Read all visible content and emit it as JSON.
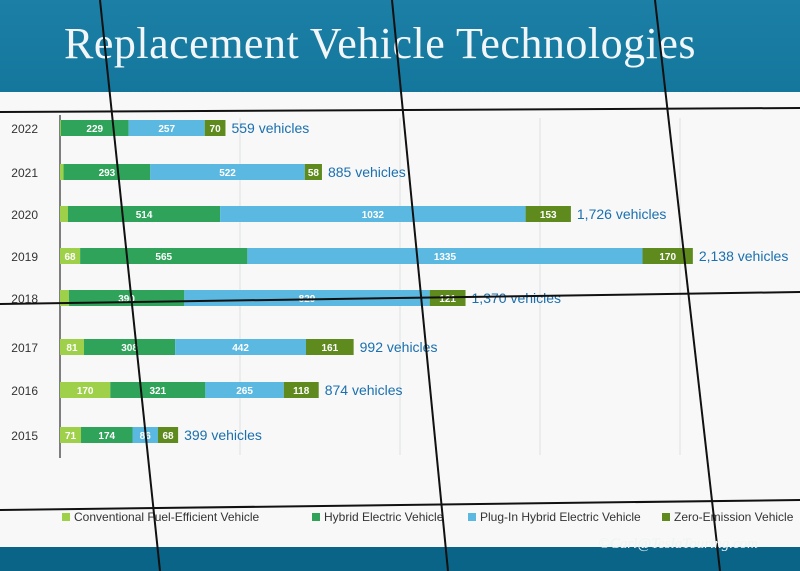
{
  "title": "Replacement Vehicle Technologies",
  "credit": "©Carl@TeslaTouring.com",
  "colors": {
    "conventional": "#9ed04a",
    "hybrid": "#2fa35a",
    "plugin": "#5bb8e0",
    "zero": "#5f8a1e",
    "total_text": "#1b6fb0"
  },
  "chart_data": {
    "type": "bar",
    "orientation": "horizontal",
    "stacked": true,
    "categories": [
      "2022",
      "2021",
      "2020",
      "2019",
      "2018",
      "2017",
      "2016",
      "2015"
    ],
    "series": [
      {
        "name": "Conventional Fuel-Efficient Vehicle",
        "values": [
          3,
          12,
          27,
          68,
          30,
          81,
          170,
          71
        ]
      },
      {
        "name": "Hybrid Electric Vehicle",
        "values": [
          229,
          293,
          514,
          565,
          390,
          308,
          321,
          174
        ]
      },
      {
        "name": "Plug-In Hybrid Electric Vehicle",
        "values": [
          257,
          522,
          1032,
          1335,
          829,
          442,
          265,
          86
        ]
      },
      {
        "name": "Zero-Emission Vehicle",
        "values": [
          70,
          58,
          153,
          170,
          121,
          161,
          118,
          68
        ]
      }
    ],
    "totals": [
      "559 vehicles",
      "885 vehicles",
      "1,726 vehicles",
      "2,138 vehicles",
      "1,370 vehicles",
      "992 vehicles",
      "874 vehicles",
      "399 vehicles"
    ],
    "legend_position": "bottom",
    "grid": true
  }
}
